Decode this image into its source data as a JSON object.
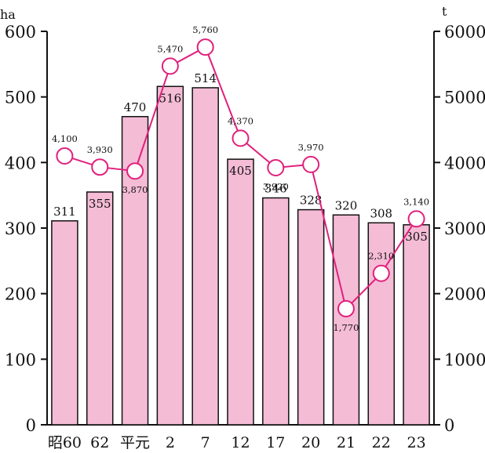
{
  "chart_data": {
    "type": "bar+line",
    "categories": [
      "昭60",
      "62",
      "平元",
      "2",
      "7",
      "12",
      "17",
      "20",
      "21",
      "22",
      "23"
    ],
    "series": [
      {
        "type": "bar",
        "axis": "left",
        "values": [
          311,
          355,
          470,
          516,
          514,
          405,
          346,
          328,
          320,
          308,
          305
        ]
      },
      {
        "type": "line",
        "axis": "right",
        "values": [
          4100,
          3930,
          3870,
          5470,
          5760,
          4370,
          3920,
          3970,
          1770,
          2310,
          3140
        ]
      }
    ],
    "bar_labels": [
      "311",
      "355",
      "470",
      "516",
      "514",
      "405",
      "346",
      "328",
      "320",
      "308",
      "305"
    ],
    "line_labels": [
      "4,100",
      "3,930",
      "3,870",
      "5,470",
      "5,760",
      "4,370",
      "3,920",
      "3,970",
      "1,770",
      "2,310",
      "3,140"
    ],
    "left_axis": {
      "unit": "ha",
      "ylim": [
        0,
        600
      ],
      "ticks": [
        "0",
        "100",
        "200",
        "300",
        "400",
        "500",
        "600"
      ]
    },
    "right_axis": {
      "unit": "t",
      "ylim": [
        0,
        6000
      ],
      "ticks": [
        "0",
        "1000",
        "2000",
        "3000",
        "4000",
        "5000",
        "6000"
      ]
    },
    "grid": false,
    "legend": "none",
    "colors": {
      "bar_fill": "#f5bcd6",
      "bar_stroke": "#111111",
      "line": "#e0207c",
      "marker_fill": "#ffffff"
    }
  }
}
